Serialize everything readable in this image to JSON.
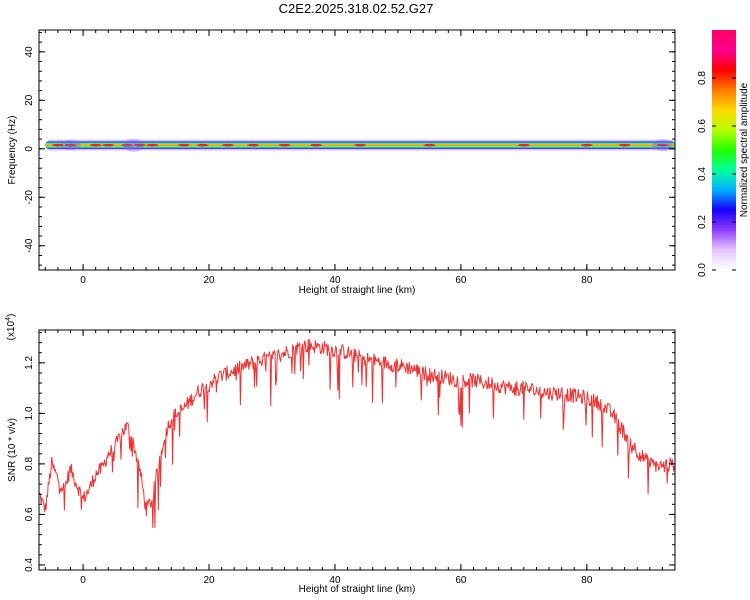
{
  "title": "C2E2.2025.318.02.52.G27",
  "chart_data": [
    {
      "type": "heatmap",
      "xlabel": "Height of straight line (km)",
      "ylabel": "Frequency (Hz)",
      "xlim": [
        -7,
        94
      ],
      "ylim": [
        -50,
        49
      ],
      "xticks": [
        0,
        20,
        40,
        60,
        80
      ],
      "xtick_labels": [
        "0",
        "20",
        "40",
        "60",
        "80"
      ],
      "yticks": [
        -40,
        -20,
        0,
        20,
        40
      ],
      "ytick_labels": [
        "-40",
        "-20",
        "0",
        "20",
        "40"
      ],
      "description_band": {
        "center_hz": 1.5,
        "halfwidth_hz": 1.5
      },
      "hotspots_km": [
        -4,
        -2,
        2,
        4,
        7,
        9,
        11,
        16,
        19,
        23,
        27,
        32,
        37,
        44,
        55,
        70,
        80,
        86,
        92
      ],
      "colorbar": {
        "label": "Normalized spectral amplitude",
        "range": [
          0,
          1
        ],
        "ticks": [
          0.0,
          0.2,
          0.4,
          0.6,
          0.8
        ],
        "tick_labels": [
          "0.0",
          "0.2",
          "0.4",
          "0.6",
          "0.8"
        ],
        "colors": [
          "#ffffff",
          "#e3c6ff",
          "#8f3dff",
          "#1a00ff",
          "#00b0ff",
          "#00ff9c",
          "#23ff00",
          "#b8ff00",
          "#ffd800",
          "#ff7a00",
          "#ff0000",
          "#ff0090",
          "#ff0060"
        ]
      }
    },
    {
      "type": "line",
      "xlabel": "Height of straight line (km)",
      "ylabel": "SNR (10 * v/v)",
      "multiplier_label": "(x10",
      "multiplier_exp": "4",
      "multiplier_close": ")",
      "xlim": [
        -7,
        94
      ],
      "ylim": [
        0.38,
        1.33
      ],
      "xticks": [
        0,
        20,
        40,
        60,
        80
      ],
      "xtick_labels": [
        "0",
        "20",
        "40",
        "60",
        "80"
      ],
      "yticks": [
        0.4,
        0.6,
        0.8,
        1.0,
        1.2
      ],
      "ytick_labels": [
        "0.4",
        "0.6",
        "0.8",
        "1.0",
        "1.2"
      ],
      "color": "#ee3333",
      "series": [
        {
          "name": "SNR",
          "x": [
            -7,
            -6,
            -5,
            -4,
            -3,
            -2,
            -1,
            0,
            1,
            2,
            3,
            4,
            5,
            6,
            7,
            8,
            9,
            10,
            11,
            12,
            13,
            14,
            15,
            16,
            17,
            18,
            19,
            20,
            22,
            24,
            26,
            28,
            30,
            32,
            34,
            36,
            38,
            40,
            42,
            44,
            46,
            48,
            50,
            52,
            54,
            56,
            58,
            60,
            62,
            64,
            66,
            68,
            70,
            72,
            74,
            76,
            78,
            80,
            82,
            84,
            86,
            88,
            90,
            92,
            94
          ],
          "values": [
            0.68,
            0.62,
            0.8,
            0.74,
            0.7,
            0.78,
            0.72,
            0.66,
            0.7,
            0.76,
            0.78,
            0.84,
            0.86,
            0.92,
            0.95,
            0.88,
            0.78,
            0.62,
            0.66,
            0.8,
            0.92,
            0.98,
            1.0,
            1.02,
            1.05,
            1.08,
            1.1,
            1.12,
            1.15,
            1.17,
            1.19,
            1.21,
            1.22,
            1.24,
            1.26,
            1.27,
            1.26,
            1.25,
            1.24,
            1.22,
            1.21,
            1.2,
            1.19,
            1.18,
            1.16,
            1.15,
            1.14,
            1.13,
            1.13,
            1.12,
            1.11,
            1.1,
            1.1,
            1.09,
            1.08,
            1.08,
            1.07,
            1.06,
            1.04,
            1.0,
            0.92,
            0.85,
            0.8,
            0.79,
            0.8
          ]
        }
      ]
    }
  ]
}
